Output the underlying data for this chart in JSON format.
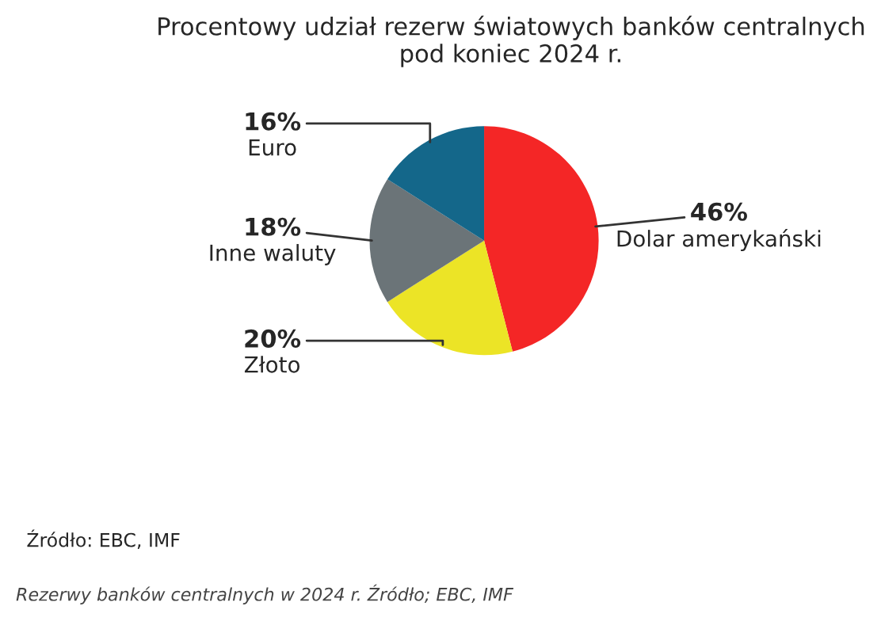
{
  "chart_data": {
    "type": "pie",
    "title": "Procentowy udział rezerw światowych banków centralnych\npod koniec 2024 r.",
    "categories": [
      "Dolar amerykański",
      "Złoto",
      "Inne waluty",
      "Euro"
    ],
    "values": [
      46,
      20,
      18,
      16
    ],
    "colors": [
      "#f42626",
      "#ece426",
      "#6b7478",
      "#14678a"
    ],
    "value_labels": [
      "46%",
      "20%",
      "18%",
      "16%"
    ],
    "annotations": [
      "Źródło: EBC, IMF",
      "Rezerwy banków centralnych w 2024 r. Źródło; EBC, IMF"
    ]
  }
}
